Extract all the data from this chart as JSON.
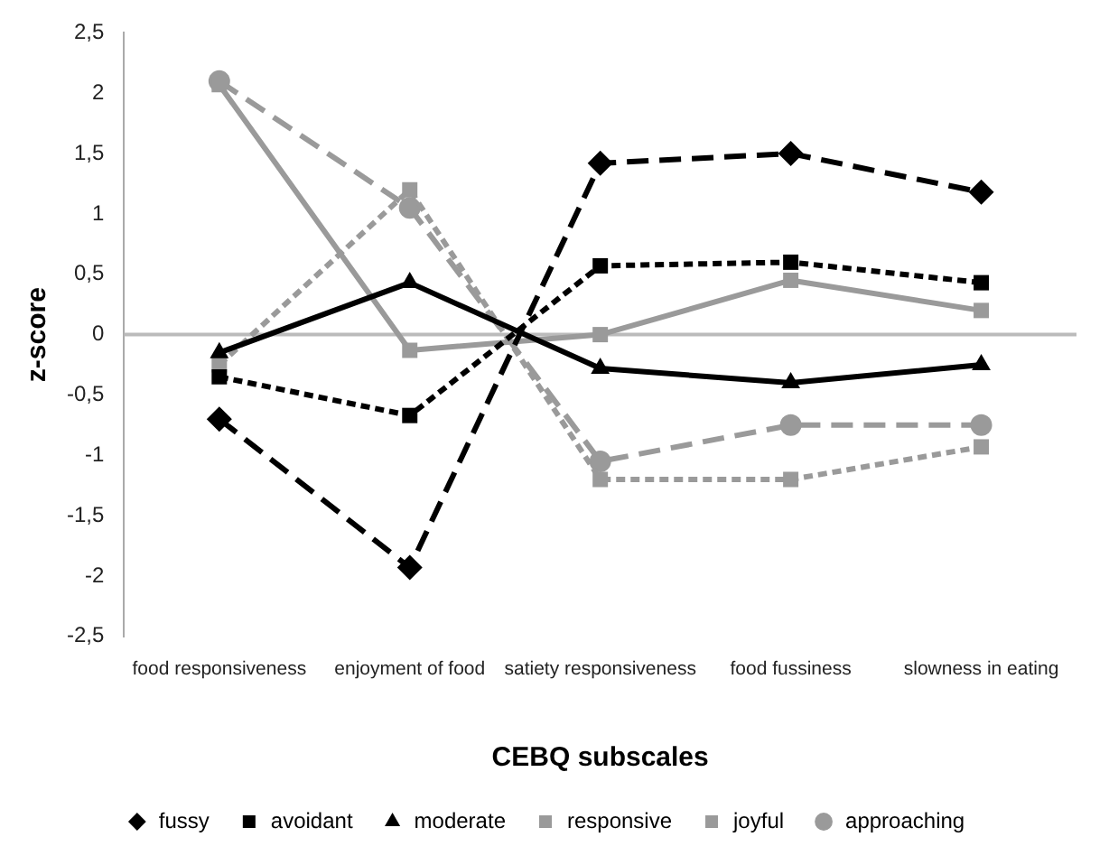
{
  "chart_data": {
    "type": "line",
    "xlabel": "CEBQ subscales",
    "ylabel": "z-score",
    "categories": [
      "food responsiveness",
      "enjoyment of food",
      "satiety responsiveness",
      "food fussiness",
      "slowness in eating"
    ],
    "series": [
      {
        "name": "fussy",
        "color": "#000000",
        "marker": "diamond",
        "line_style": "dashed",
        "values": [
          -0.7,
          -1.93,
          1.42,
          1.5,
          1.18
        ]
      },
      {
        "name": "avoidant",
        "color": "#000000",
        "marker": "square",
        "line_style": "dotted",
        "values": [
          -0.35,
          -0.67,
          0.57,
          0.6,
          0.43
        ]
      },
      {
        "name": "moderate",
        "color": "#000000",
        "marker": "triangle",
        "line_style": "solid",
        "values": [
          -0.15,
          0.43,
          -0.28,
          -0.4,
          -0.25
        ]
      },
      {
        "name": "responsive",
        "color": "#9a9a9a",
        "marker": "square",
        "line_style": "solid",
        "values": [
          2.07,
          -0.13,
          0,
          0.45,
          0.2
        ]
      },
      {
        "name": "joyful",
        "color": "#9a9a9a",
        "marker": "square",
        "line_style": "dotted",
        "values": [
          -0.25,
          1.2,
          -1.2,
          -1.2,
          -0.93
        ]
      },
      {
        "name": "approaching",
        "color": "#9a9a9a",
        "marker": "circle",
        "line_style": "dashed",
        "values": [
          2.1,
          1.05,
          -1.05,
          -0.75,
          -0.75
        ]
      }
    ],
    "ylim": [
      -2.5,
      2.5
    ],
    "yticks": [
      {
        "value": -2.5,
        "label": "-2,5"
      },
      -2,
      {
        "value": -1.5,
        "label": "-1,5"
      },
      -1,
      {
        "value": -0.5,
        "label": "-0,5"
      },
      0,
      {
        "value": 0.5,
        "label": "0,5"
      },
      1,
      {
        "value": 1.5,
        "label": "1,5"
      },
      2,
      {
        "value": 2.5,
        "label": "2,5"
      }
    ],
    "ref_lines": [
      {
        "axis": "y",
        "value": 0,
        "color": "#bbbbbb"
      }
    ],
    "grid": false,
    "legend": "bottom"
  }
}
